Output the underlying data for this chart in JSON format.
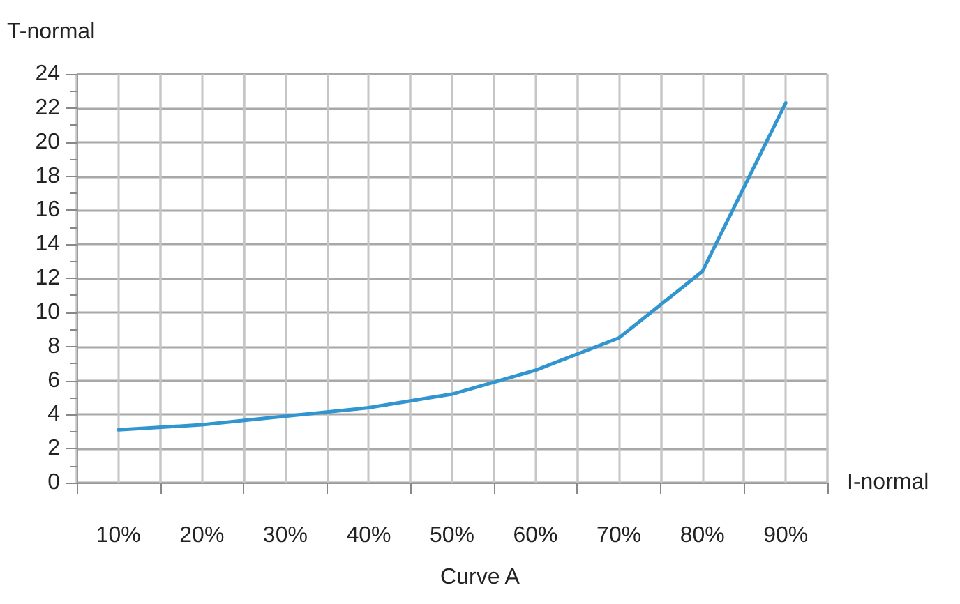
{
  "chart_data": {
    "type": "line",
    "title": "Curve A",
    "xlabel": "I-normal",
    "ylabel": "T-normal",
    "categories": [
      "10%",
      "20%",
      "30%",
      "40%",
      "50%",
      "60%",
      "70%",
      "80%",
      "90%"
    ],
    "series": [
      {
        "color": "#3195cf",
        "values": [
          3.1,
          3.4,
          3.9,
          4.4,
          5.2,
          6.6,
          8.5,
          12.4,
          22.3
        ]
      }
    ],
    "ylim": [
      0,
      24
    ],
    "yticks": [
      0,
      2,
      4,
      6,
      8,
      10,
      12,
      14,
      16,
      18,
      20,
      22,
      24
    ],
    "grid": true,
    "marker": "none",
    "line_style": "solid"
  }
}
